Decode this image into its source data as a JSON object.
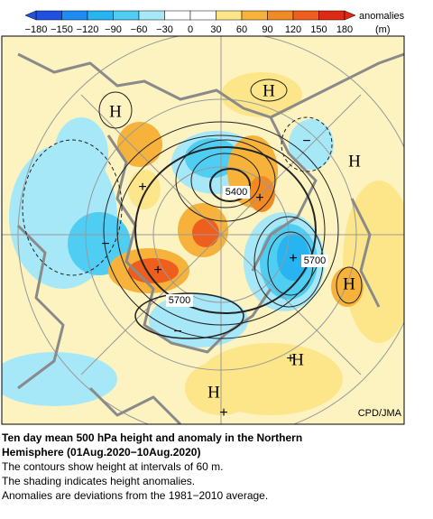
{
  "colorbar": {
    "ticks": [
      "−180",
      "−150",
      "−120",
      "−90",
      "−60",
      "−30",
      "0",
      "30",
      "60",
      "90",
      "120",
      "150",
      "180"
    ],
    "colors": [
      "#2050e0",
      "#1e8cf5",
      "#28b4f0",
      "#50cdf2",
      "#a6e8f8",
      "#ffffff",
      "#ffffff",
      "#fde68a",
      "#f6b23a",
      "#f28a24",
      "#ee5f1e",
      "#dc2a14"
    ],
    "title": "anomalies",
    "unit": "(m)"
  },
  "map": {
    "highs": [
      "H",
      "H",
      "H",
      "H",
      "H",
      "H"
    ],
    "plus": [
      "+",
      "+",
      "+",
      "+",
      "+",
      "+"
    ],
    "minus": [
      "−",
      "−",
      "−"
    ],
    "contour_labels": [
      "5400",
      "5700",
      "5700"
    ],
    "credit": "CPD/JMA"
  },
  "caption": {
    "title_lines": [
      "Ten day mean 500 hPa height and anomaly in the Northern",
      "Hemisphere (01Aug.2020−10Aug.2020)"
    ],
    "lines": [
      "The contours show height at intervals of 60 m.",
      "The shading indicates height anomalies.",
      "Anomalies are deviations from the 1981−2010 average."
    ]
  }
}
